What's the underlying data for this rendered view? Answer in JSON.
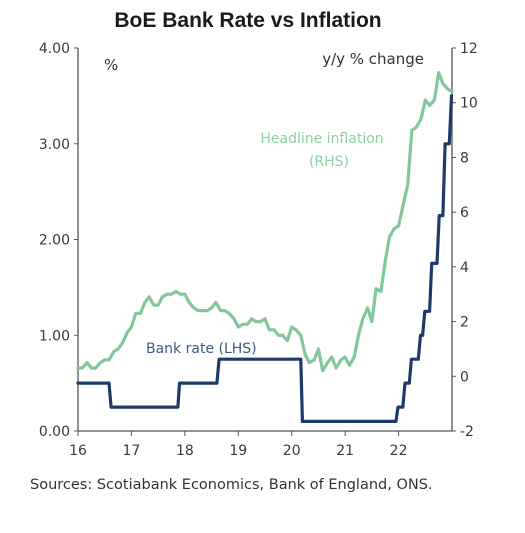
{
  "chart_data": {
    "type": "line",
    "title": "BoE Bank Rate vs Inflation",
    "left_axis": {
      "unit_label": "%",
      "ylim": [
        0,
        4
      ],
      "ticks": [
        "0.00",
        "1.00",
        "2.00",
        "3.00",
        "4.00"
      ]
    },
    "right_axis": {
      "unit_label": "y/y % change",
      "ylim": [
        -2,
        12
      ],
      "ticks": [
        "-2",
        "0",
        "2",
        "4",
        "6",
        "8",
        "10",
        "12"
      ]
    },
    "x_axis": {
      "xlim": [
        2016,
        2023
      ],
      "ticks": [
        "16",
        "17",
        "18",
        "19",
        "20",
        "21",
        "22"
      ]
    },
    "annotations": {
      "inflation": [
        "Headline inflation",
        "(RHS)"
      ],
      "bank_rate": "Bank rate (LHS)"
    },
    "colors": {
      "inflation": "#82c79c",
      "bank_rate": "#1f3a68",
      "axis": "#555555"
    },
    "grid": false,
    "series": [
      {
        "name": "Bank rate (LHS)",
        "axis": "left",
        "points": [
          [
            2016.0,
            0.5
          ],
          [
            2016.58,
            0.5
          ],
          [
            2016.62,
            0.25
          ],
          [
            2017.87,
            0.25
          ],
          [
            2017.9,
            0.5
          ],
          [
            2018.6,
            0.5
          ],
          [
            2018.64,
            0.75
          ],
          [
            2020.17,
            0.75
          ],
          [
            2020.2,
            0.1
          ],
          [
            2021.95,
            0.1
          ],
          [
            2021.99,
            0.25
          ],
          [
            2022.08,
            0.25
          ],
          [
            2022.12,
            0.5
          ],
          [
            2022.2,
            0.5
          ],
          [
            2022.24,
            0.75
          ],
          [
            2022.37,
            0.75
          ],
          [
            2022.41,
            1.0
          ],
          [
            2022.45,
            1.0
          ],
          [
            2022.49,
            1.25
          ],
          [
            2022.58,
            1.25
          ],
          [
            2022.62,
            1.75
          ],
          [
            2022.72,
            1.75
          ],
          [
            2022.76,
            2.25
          ],
          [
            2022.83,
            2.25
          ],
          [
            2022.87,
            3.0
          ],
          [
            2022.95,
            3.0
          ],
          [
            2022.99,
            3.5
          ]
        ]
      },
      {
        "name": "Headline inflation (RHS)",
        "axis": "right",
        "points": [
          [
            2016.0,
            0.3
          ],
          [
            2016.08,
            0.3
          ],
          [
            2016.17,
            0.5
          ],
          [
            2016.25,
            0.3
          ],
          [
            2016.33,
            0.3
          ],
          [
            2016.42,
            0.5
          ],
          [
            2016.5,
            0.6
          ],
          [
            2016.58,
            0.6
          ],
          [
            2016.67,
            0.9
          ],
          [
            2016.75,
            1.0
          ],
          [
            2016.83,
            1.2
          ],
          [
            2016.92,
            1.6
          ],
          [
            2017.0,
            1.8
          ],
          [
            2017.08,
            2.3
          ],
          [
            2017.17,
            2.3
          ],
          [
            2017.25,
            2.7
          ],
          [
            2017.33,
            2.9
          ],
          [
            2017.42,
            2.6
          ],
          [
            2017.5,
            2.6
          ],
          [
            2017.58,
            2.9
          ],
          [
            2017.67,
            3.0
          ],
          [
            2017.75,
            3.0
          ],
          [
            2017.83,
            3.1
          ],
          [
            2017.92,
            3.0
          ],
          [
            2018.0,
            3.0
          ],
          [
            2018.08,
            2.7
          ],
          [
            2018.17,
            2.5
          ],
          [
            2018.25,
            2.4
          ],
          [
            2018.33,
            2.4
          ],
          [
            2018.42,
            2.4
          ],
          [
            2018.5,
            2.5
          ],
          [
            2018.58,
            2.7
          ],
          [
            2018.67,
            2.4
          ],
          [
            2018.75,
            2.4
          ],
          [
            2018.83,
            2.3
          ],
          [
            2018.92,
            2.1
          ],
          [
            2019.0,
            1.8
          ],
          [
            2019.08,
            1.9
          ],
          [
            2019.17,
            1.9
          ],
          [
            2019.25,
            2.1
          ],
          [
            2019.33,
            2.0
          ],
          [
            2019.42,
            2.0
          ],
          [
            2019.5,
            2.1
          ],
          [
            2019.58,
            1.7
          ],
          [
            2019.67,
            1.7
          ],
          [
            2019.75,
            1.5
          ],
          [
            2019.83,
            1.5
          ],
          [
            2019.92,
            1.3
          ],
          [
            2020.0,
            1.8
          ],
          [
            2020.08,
            1.7
          ],
          [
            2020.17,
            1.5
          ],
          [
            2020.25,
            0.8
          ],
          [
            2020.33,
            0.5
          ],
          [
            2020.42,
            0.6
          ],
          [
            2020.5,
            1.0
          ],
          [
            2020.58,
            0.2
          ],
          [
            2020.67,
            0.5
          ],
          [
            2020.75,
            0.7
          ],
          [
            2020.83,
            0.3
          ],
          [
            2020.92,
            0.6
          ],
          [
            2021.0,
            0.7
          ],
          [
            2021.08,
            0.4
          ],
          [
            2021.17,
            0.7
          ],
          [
            2021.25,
            1.5
          ],
          [
            2021.33,
            2.1
          ],
          [
            2021.42,
            2.5
          ],
          [
            2021.5,
            2.0
          ],
          [
            2021.58,
            3.2
          ],
          [
            2021.67,
            3.1
          ],
          [
            2021.75,
            4.2
          ],
          [
            2021.83,
            5.1
          ],
          [
            2021.92,
            5.4
          ],
          [
            2022.0,
            5.5
          ],
          [
            2022.08,
            6.2
          ],
          [
            2022.17,
            7.0
          ],
          [
            2022.25,
            9.0
          ],
          [
            2022.33,
            9.1
          ],
          [
            2022.42,
            9.4
          ],
          [
            2022.5,
            10.1
          ],
          [
            2022.58,
            9.9
          ],
          [
            2022.67,
            10.1
          ],
          [
            2022.75,
            11.1
          ],
          [
            2022.83,
            10.7
          ],
          [
            2022.92,
            10.5
          ],
          [
            2023.0,
            10.4
          ]
        ]
      }
    ]
  },
  "footer": {
    "source": "Sources: Scotiabank Economics, Bank of England, ONS."
  }
}
